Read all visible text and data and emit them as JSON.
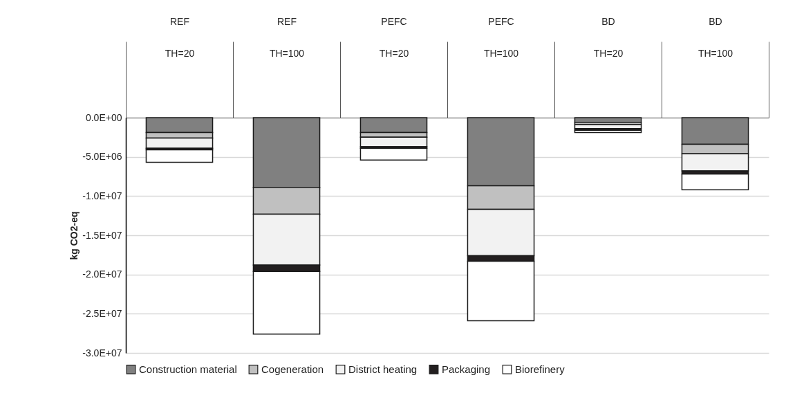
{
  "chart_data": {
    "type": "bar",
    "stacked": true,
    "ylabel": "kg CO2-eq",
    "categories": [
      "REF\nTH=20",
      "REF\nTH=100",
      "PEFC\nTH=20",
      "PEFC\nTH=100",
      "BD\nTH=20",
      "BD\nTH=100"
    ],
    "series": [
      {
        "name": "Construction material",
        "color": "#808080",
        "values": [
          -1900000,
          -8900000,
          -1900000,
          -8700000,
          -600000,
          -3400000
        ]
      },
      {
        "name": "Cogeneration",
        "color": "#c0c0c0",
        "values": [
          -700000,
          -3400000,
          -600000,
          -3000000,
          -300000,
          -1200000
        ]
      },
      {
        "name": "District heating",
        "color": "#f2f2f2",
        "values": [
          -1300000,
          -6500000,
          -1200000,
          -5900000,
          -500000,
          -2200000
        ]
      },
      {
        "name": "Packaging",
        "color": "#231f20",
        "values": [
          -200000,
          -800000,
          -200000,
          -700000,
          -200000,
          -400000
        ]
      },
      {
        "name": "Biorefinery",
        "color": "#ffffff",
        "values": [
          -1600000,
          -8000000,
          -1500000,
          -7600000,
          -300000,
          -2000000
        ]
      }
    ],
    "ylim": [
      -30000000,
      0
    ],
    "yticks": [
      {
        "value": 0,
        "label": "0.0E+00"
      },
      {
        "value": -5000000,
        "label": "-5.0E+06"
      },
      {
        "value": -10000000,
        "label": "-1.0E+07"
      },
      {
        "value": -15000000,
        "label": "-1.5E+07"
      },
      {
        "value": -20000000,
        "label": "-2.0E+07"
      },
      {
        "value": -25000000,
        "label": "-2.5E+07"
      },
      {
        "value": -30000000,
        "label": "-3.0E+07"
      }
    ],
    "grid": "y",
    "legend": "bottom"
  }
}
